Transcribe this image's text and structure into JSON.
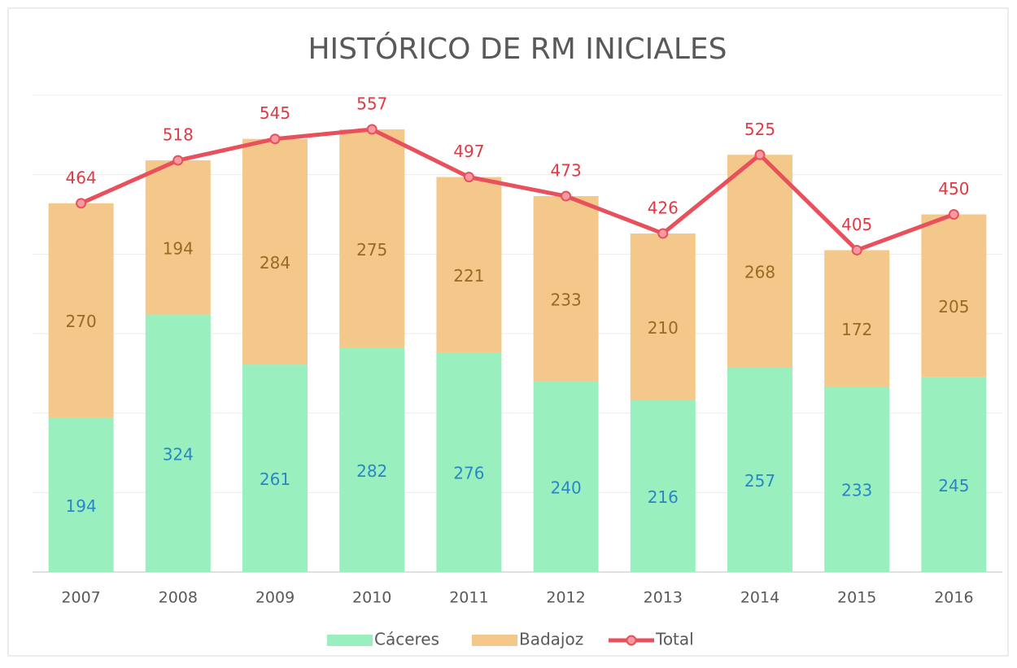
{
  "chart_data": {
    "type": "bar",
    "stacked": true,
    "title": "HISTÓRICO DE RM INICIALES",
    "categories": [
      "2007",
      "2008",
      "2009",
      "2010",
      "2011",
      "2012",
      "2013",
      "2014",
      "2015",
      "2016"
    ],
    "series": [
      {
        "name": "Cáceres",
        "color": "#9aefbf",
        "label_color": "#2a86c4",
        "values": [
          194,
          324,
          261,
          282,
          276,
          240,
          216,
          257,
          233,
          245
        ]
      },
      {
        "name": "Badajoz",
        "color": "#f3c88a",
        "label_color": "#9a6a24",
        "values": [
          270,
          194,
          284,
          275,
          221,
          233,
          210,
          268,
          172,
          205
        ]
      },
      {
        "name": "Total",
        "type": "line",
        "color": "#e8505b",
        "label_color": "#e03a45",
        "values": [
          464,
          518,
          545,
          557,
          497,
          473,
          426,
          525,
          405,
          450
        ]
      }
    ],
    "ylim": [
      0,
      600
    ],
    "yticks": [
      0,
      100,
      200,
      300,
      400,
      500,
      600
    ],
    "grid": true,
    "legend": "bottom"
  }
}
